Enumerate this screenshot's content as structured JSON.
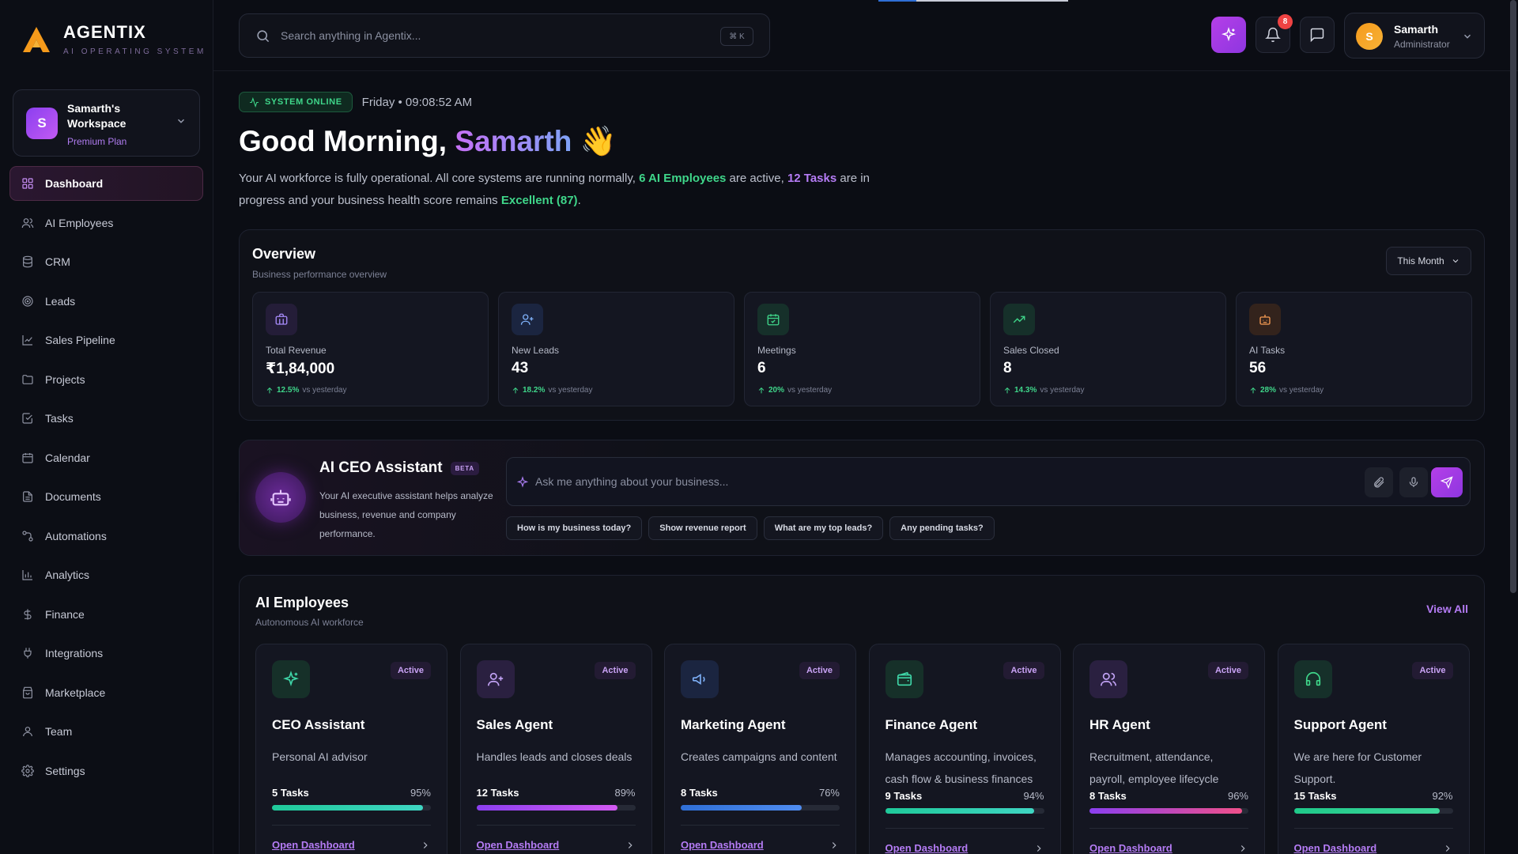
{
  "brand": {
    "title": "AGENTIX",
    "subtitle": "AI OPERATING SYSTEM"
  },
  "workspace": {
    "initial": "S",
    "name": "Samarth's Workspace",
    "plan": "Premium Plan"
  },
  "nav": [
    {
      "label": "Dashboard",
      "icon": "dashboard-icon"
    },
    {
      "label": "AI Employees",
      "icon": "users-icon"
    },
    {
      "label": "CRM",
      "icon": "database-icon"
    },
    {
      "label": "Leads",
      "icon": "target-icon"
    },
    {
      "label": "Sales Pipeline",
      "icon": "chart-line-icon"
    },
    {
      "label": "Projects",
      "icon": "folder-icon"
    },
    {
      "label": "Tasks",
      "icon": "checkbox-icon"
    },
    {
      "label": "Calendar",
      "icon": "calendar-icon"
    },
    {
      "label": "Documents",
      "icon": "document-icon"
    },
    {
      "label": "Automations",
      "icon": "workflow-icon"
    },
    {
      "label": "Analytics",
      "icon": "bar-chart-icon"
    },
    {
      "label": "Finance",
      "icon": "dollar-icon"
    },
    {
      "label": "Integrations",
      "icon": "plug-icon"
    },
    {
      "label": "Marketplace",
      "icon": "store-icon"
    },
    {
      "label": "Team",
      "icon": "person-icon"
    },
    {
      "label": "Settings",
      "icon": "gear-icon"
    }
  ],
  "search": {
    "placeholder": "Search anything in Agentix...",
    "shortcut": "⌘ K"
  },
  "notifications": {
    "count": "8"
  },
  "user": {
    "initial": "S",
    "name": "Samarth",
    "role": "Administrator"
  },
  "status": {
    "label": "SYSTEM ONLINE",
    "datetime": "Friday • 09:08:52 AM"
  },
  "greeting": {
    "prefix": "Good Morning, ",
    "name": "Samarth",
    "emoji": "👋"
  },
  "intro": {
    "t1": "Your AI workforce is fully operational. All core systems are running normally, ",
    "employees": "6 AI Employees",
    "t2": " are active, ",
    "tasks": "12 Tasks",
    "t3": " are in progress and your business health score remains ",
    "health": "Excellent (87)",
    "t4": "."
  },
  "overview": {
    "title": "Overview",
    "subtitle": "Business performance overview",
    "period": "This Month",
    "kpis": [
      {
        "label": "Total Revenue",
        "value": "₹1,84,000",
        "change": "12.5%",
        "compare": "vs yesterday",
        "icon": "briefcase-icon",
        "color": "#a78bfa",
        "bg": "#241d38"
      },
      {
        "label": "New Leads",
        "value": "43",
        "change": "18.2%",
        "compare": "vs yesterday",
        "icon": "user-plus-icon",
        "color": "#7eb0f7",
        "bg": "#1b2540"
      },
      {
        "label": "Meetings",
        "value": "6",
        "change": "20%",
        "compare": "vs yesterday",
        "icon": "calendar-check-icon",
        "color": "#3fd68a",
        "bg": "#16302a"
      },
      {
        "label": "Sales Closed",
        "value": "8",
        "change": "14.3%",
        "compare": "vs yesterday",
        "icon": "trending-up-icon",
        "color": "#3fd68a",
        "bg": "#16302a"
      },
      {
        "label": "AI Tasks",
        "value": "56",
        "change": "28%",
        "compare": "vs yesterday",
        "icon": "bot-icon",
        "color": "#f59a52",
        "bg": "#33231c"
      }
    ]
  },
  "ceo": {
    "title": "AI CEO Assistant",
    "badge": "BETA",
    "description": "Your AI executive assistant helps analyze business, revenue and company performance.",
    "placeholder": "Ask me anything about your business...",
    "chips": [
      "How is my business today?",
      "Show revenue report",
      "What are my top leads?",
      "Any pending tasks?"
    ]
  },
  "employees": {
    "title": "AI Employees",
    "subtitle": "Autonomous AI workforce",
    "view_all": "View All",
    "items": [
      {
        "name": "CEO Assistant",
        "desc": "Personal AI advisor",
        "tasks": "5 Tasks",
        "pct": "95%",
        "progress": 0.95,
        "status": "Active",
        "icon": "sparkle-icon",
        "color": "#3fd6a8",
        "bg": "#163029",
        "bar": "linear-gradient(90deg,#1fc99a,#3fd6c3)",
        "link": "Open Dashboard"
      },
      {
        "name": "Sales Agent",
        "desc": "Handles leads and closes deals",
        "tasks": "12 Tasks",
        "pct": "89%",
        "progress": 0.89,
        "status": "Active",
        "icon": "user-plus-icon",
        "color": "#c2a3f5",
        "bg": "#2a2040",
        "bar": "linear-gradient(90deg,#8b3ff0,#d35af2)",
        "link": "Open Dashboard"
      },
      {
        "name": "Marketing Agent",
        "desc": "Creates campaigns and content",
        "tasks": "8 Tasks",
        "pct": "76%",
        "progress": 0.76,
        "status": "Active",
        "icon": "megaphone-icon",
        "color": "#7eb0f7",
        "bg": "#1b2540",
        "bar": "linear-gradient(90deg,#2f6fd6,#4f8cf0)",
        "link": "Open Dashboard"
      },
      {
        "name": "Finance Agent",
        "desc": "Manages accounting, invoices, cash flow & business finances",
        "tasks": "9 Tasks",
        "pct": "94%",
        "progress": 0.94,
        "status": "Active",
        "icon": "wallet-icon",
        "color": "#3fd6a8",
        "bg": "#163029",
        "bar": "linear-gradient(90deg,#1fc99a,#3fd6c3)",
        "link": "Open Dashboard"
      },
      {
        "name": "HR Agent",
        "desc": "Recruitment, attendance, payroll, employee lifecycle",
        "tasks": "8 Tasks",
        "pct": "96%",
        "progress": 0.96,
        "status": "Active",
        "icon": "users-icon",
        "color": "#c2a3f5",
        "bg": "#2a2040",
        "bar": "linear-gradient(90deg,#8b3ff0,#f0508a)",
        "link": "Open Dashboard"
      },
      {
        "name": "Support Agent",
        "desc": "We are here for Customer Support.",
        "tasks": "15 Tasks",
        "pct": "92%",
        "progress": 0.92,
        "status": "Active",
        "icon": "headset-icon",
        "color": "#3fd68a",
        "bg": "#16302a",
        "bar": "linear-gradient(90deg,#1fc98a,#3fd69a)",
        "link": "Open Dashboard"
      }
    ]
  }
}
